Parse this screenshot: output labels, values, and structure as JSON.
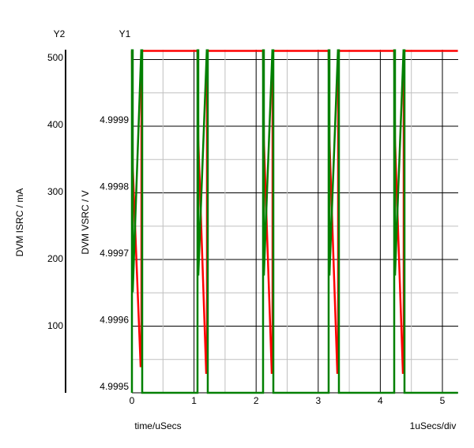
{
  "chart_data": {
    "type": "line",
    "y2_label": "Y2",
    "y1_label": "Y1",
    "xlabel": "time/uSecs",
    "x_scale_note": "1uSecs/div",
    "y2_axis_title": "DVM ISRC / mA",
    "y1_axis_title": "DVM VSRC / V",
    "xlim": [
      0,
      5.25
    ],
    "y1lim": [
      4.9995,
      5.000015
    ],
    "y2lim": [
      0,
      512
    ],
    "x_ticks": [
      "0",
      "1",
      "2",
      "3",
      "4",
      "5"
    ],
    "y1_ticks": [
      "4.9995",
      "4.9996",
      "4.9997",
      "4.9998",
      "4.9999"
    ],
    "y1_tick_values": [
      4.9995,
      4.9996,
      4.9997,
      4.9998,
      4.9999
    ],
    "y2_ticks": [
      "100",
      "200",
      "300",
      "400",
      "500"
    ],
    "y2_tick_values": [
      100,
      200,
      300,
      400,
      500
    ],
    "grid": true,
    "series": [
      {
        "axis": "y1",
        "color": "#ff0000",
        "x": [
          0,
          0.013,
          0.14,
          0.153,
          0.153,
          1.056,
          1.069,
          1.196,
          1.209,
          1.209,
          2.112,
          2.125,
          2.252,
          2.265,
          2.265,
          3.168,
          3.181,
          3.308,
          3.321,
          3.321,
          4.224,
          4.237,
          4.364,
          4.377,
          4.377,
          5.25
        ],
        "y": [
          5.000013,
          4.99984,
          4.99954,
          4.99954,
          5.000013,
          5.000013,
          4.99988,
          4.99953,
          4.99953,
          5.000013,
          5.000013,
          4.99988,
          4.99953,
          4.99953,
          5.000013,
          5.000013,
          4.99988,
          4.99953,
          4.99953,
          5.000013,
          5.000013,
          4.99988,
          4.99953,
          4.99953,
          5.000013,
          5.000013
        ]
      },
      {
        "axis": "y2",
        "color": "#008000",
        "x": [
          0,
          0,
          0.013,
          0.013,
          0.15,
          0.165,
          0.165,
          1.056,
          1.056,
          1.069,
          1.069,
          1.206,
          1.221,
          1.221,
          2.112,
          2.112,
          2.125,
          2.125,
          2.262,
          2.277,
          2.277,
          3.168,
          3.168,
          3.181,
          3.181,
          3.318,
          3.333,
          3.333,
          4.224,
          4.224,
          4.237,
          4.237,
          4.374,
          4.389,
          4.389,
          5.25
        ],
        "y": [
          0,
          511,
          511,
          150,
          511,
          511,
          0,
          0,
          511,
          511,
          175,
          511,
          511,
          0,
          0,
          511,
          511,
          175,
          511,
          511,
          0,
          0,
          511,
          511,
          175,
          511,
          511,
          0,
          0,
          511,
          511,
          175,
          511,
          511,
          0,
          0
        ]
      }
    ]
  }
}
